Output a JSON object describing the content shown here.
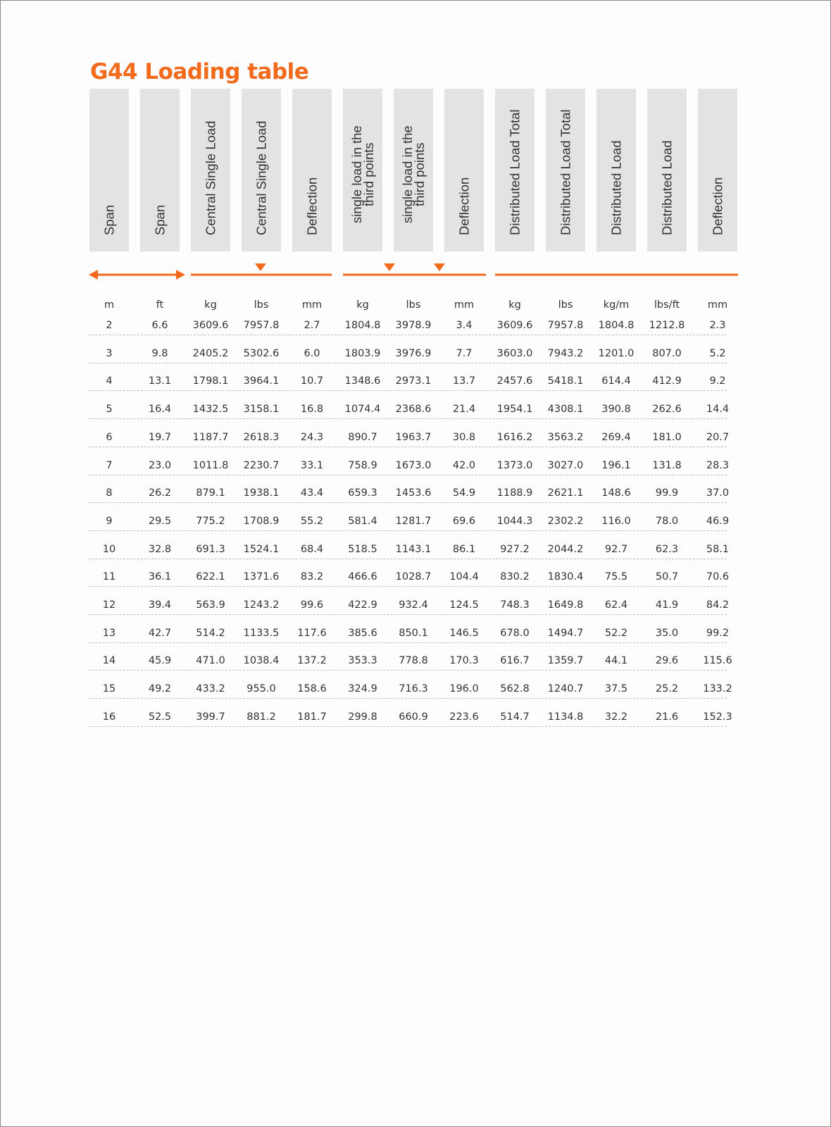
{
  "title": "G44 Loading table",
  "accent_color": "#f26b1d",
  "headers": [
    "Span",
    "Span",
    "Central Single Load",
    "Central Single Load",
    "Deflection",
    "single load in the\nthird points",
    "single load in the\nthird points",
    "Deflection",
    "Distributed Load Total",
    "Distributed Load Total",
    "Distributed Load",
    "Distributed Load",
    "Deflection"
  ],
  "load_icons": [
    "span-double-arrow",
    "central-load-marker",
    "third-points-load-markers",
    "distributed-load-line"
  ],
  "units": [
    "m",
    "ft",
    "kg",
    "lbs",
    "mm",
    "kg",
    "lbs",
    "mm",
    "kg",
    "lbs",
    "kg/m",
    "lbs/ft",
    "mm"
  ],
  "rows": [
    [
      "2",
      "6.6",
      "3609.6",
      "7957.8",
      "2.7",
      "1804.8",
      "3978.9",
      "3.4",
      "3609.6",
      "7957.8",
      "1804.8",
      "1212.8",
      "2.3"
    ],
    [
      "3",
      "9.8",
      "2405.2",
      "5302.6",
      "6.0",
      "1803.9",
      "3976.9",
      "7.7",
      "3603.0",
      "7943.2",
      "1201.0",
      "807.0",
      "5.2"
    ],
    [
      "4",
      "13.1",
      "1798.1",
      "3964.1",
      "10.7",
      "1348.6",
      "2973.1",
      "13.7",
      "2457.6",
      "5418.1",
      "614.4",
      "412.9",
      "9.2"
    ],
    [
      "5",
      "16.4",
      "1432.5",
      "3158.1",
      "16.8",
      "1074.4",
      "2368.6",
      "21.4",
      "1954.1",
      "4308.1",
      "390.8",
      "262.6",
      "14.4"
    ],
    [
      "6",
      "19.7",
      "1187.7",
      "2618.3",
      "24.3",
      "890.7",
      "1963.7",
      "30.8",
      "1616.2",
      "3563.2",
      "269.4",
      "181.0",
      "20.7"
    ],
    [
      "7",
      "23.0",
      "1011.8",
      "2230.7",
      "33.1",
      "758.9",
      "1673.0",
      "42.0",
      "1373.0",
      "3027.0",
      "196.1",
      "131.8",
      "28.3"
    ],
    [
      "8",
      "26.2",
      "879.1",
      "1938.1",
      "43.4",
      "659.3",
      "1453.6",
      "54.9",
      "1188.9",
      "2621.1",
      "148.6",
      "99.9",
      "37.0"
    ],
    [
      "9",
      "29.5",
      "775.2",
      "1708.9",
      "55.2",
      "581.4",
      "1281.7",
      "69.6",
      "1044.3",
      "2302.2",
      "116.0",
      "78.0",
      "46.9"
    ],
    [
      "10",
      "32.8",
      "691.3",
      "1524.1",
      "68.4",
      "518.5",
      "1143.1",
      "86.1",
      "927.2",
      "2044.2",
      "92.7",
      "62.3",
      "58.1"
    ],
    [
      "11",
      "36.1",
      "622.1",
      "1371.6",
      "83.2",
      "466.6",
      "1028.7",
      "104.4",
      "830.2",
      "1830.4",
      "75.5",
      "50.7",
      "70.6"
    ],
    [
      "12",
      "39.4",
      "563.9",
      "1243.2",
      "99.6",
      "422.9",
      "932.4",
      "124.5",
      "748.3",
      "1649.8",
      "62.4",
      "41.9",
      "84.2"
    ],
    [
      "13",
      "42.7",
      "514.2",
      "1133.5",
      "117.6",
      "385.6",
      "850.1",
      "146.5",
      "678.0",
      "1494.7",
      "52.2",
      "35.0",
      "99.2"
    ],
    [
      "14",
      "45.9",
      "471.0",
      "1038.4",
      "137.2",
      "353.3",
      "778.8",
      "170.3",
      "616.7",
      "1359.7",
      "44.1",
      "29.6",
      "115.6"
    ],
    [
      "15",
      "49.2",
      "433.2",
      "955.0",
      "158.6",
      "324.9",
      "716.3",
      "196.0",
      "562.8",
      "1240.7",
      "37.5",
      "25.2",
      "133.2"
    ],
    [
      "16",
      "52.5",
      "399.7",
      "881.2",
      "181.7",
      "299.8",
      "660.9",
      "223.6",
      "514.7",
      "1134.8",
      "32.2",
      "21.6",
      "152.3"
    ]
  ]
}
